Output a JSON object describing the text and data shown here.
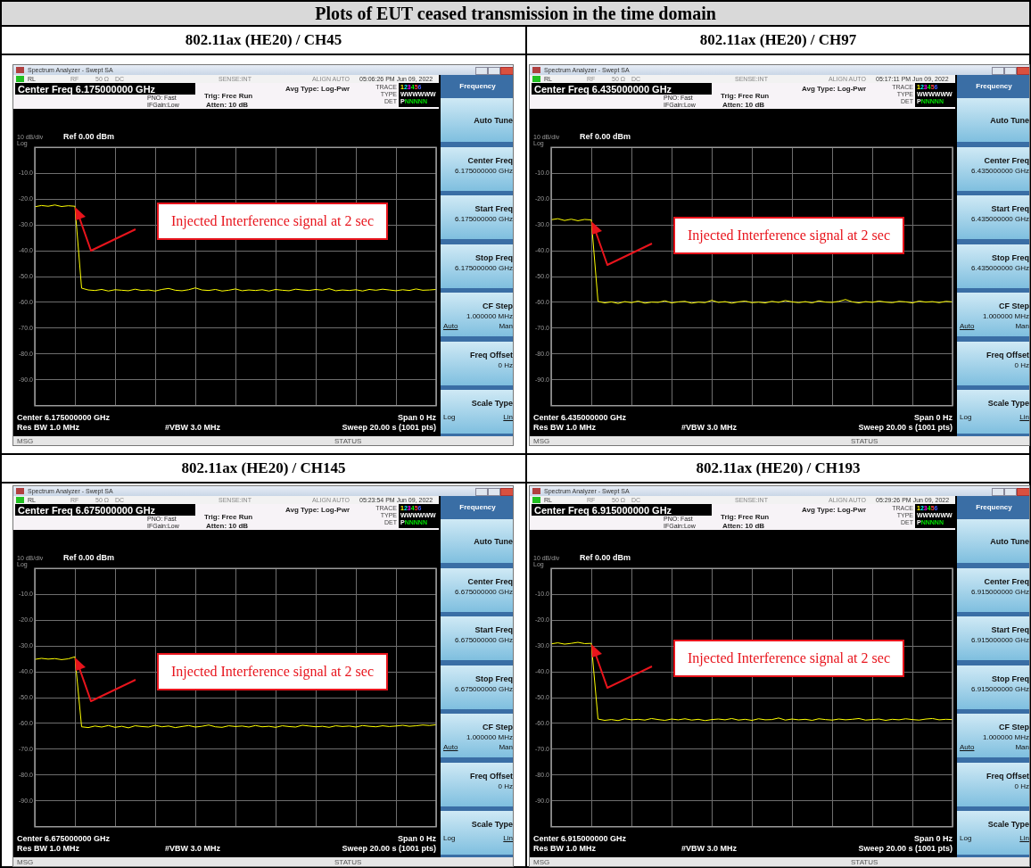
{
  "chart_data": [
    {
      "type": "other",
      "title": "Plots of EUT ceased transmission in the time domain"
    },
    {
      "type": "line",
      "title": "802.11ax (HE20) / CH45",
      "categories": [
        null,
        null,
        null,
        null,
        null,
        null,
        null,
        null,
        null,
        null,
        null,
        null,
        null,
        null,
        null,
        null,
        null,
        null,
        null,
        null,
        null,
        null,
        null,
        null,
        null,
        null,
        null,
        null,
        null,
        null,
        null,
        null,
        null,
        null,
        null,
        null,
        null,
        null,
        null,
        null,
        null,
        null,
        null,
        null,
        null,
        null,
        null,
        null,
        null,
        null,
        null,
        null,
        null,
        null,
        null,
        null,
        null,
        null,
        null,
        null,
        null
      ],
      "ylim": [
        -100,
        0
      ],
      "yticks": [
        {
          "value": -10,
          "label": "-10.0"
        },
        {
          "value": -20,
          "label": "-20.0"
        },
        {
          "value": -30,
          "label": "-30.0"
        },
        {
          "value": -40,
          "label": "-40.0"
        },
        {
          "value": -50,
          "label": "-50.0"
        },
        {
          "value": -60,
          "label": "-60.0"
        },
        {
          "value": -70,
          "label": "-70.0"
        },
        {
          "value": -80,
          "label": "-80.0"
        },
        {
          "value": -90,
          "label": "-90.0"
        }
      ],
      "grid": true,
      "tick_labels": "y",
      "marker": "none",
      "series": [
        {
          "color": "#ffff00",
          "values": [
            -23,
            -22.5,
            -22.8,
            -22.3,
            -22.9,
            -22.6,
            -22.8,
            -54.5,
            -55.2,
            -55.4,
            -55.0,
            -55.6,
            -55.1,
            -55.3,
            -55.5,
            -54.9,
            -55.4,
            -55.2,
            -55.6,
            -55.0,
            -54.6,
            -55.3,
            -55.5,
            -55.1,
            -54.4,
            -55.2,
            -55.4,
            -55.0,
            -55.6,
            -55.3,
            -54.8,
            -55.5,
            -55.2,
            -55.4,
            -55.1,
            -55.6,
            -55.0,
            -55.3,
            -55.5,
            -54.9,
            -55.2,
            -55.4,
            -55.0,
            -55.3,
            -54.7,
            -55.5,
            -55.2,
            -55.4,
            -55.1,
            -55.6,
            -55.0,
            -55.3,
            -54.9,
            -55.2,
            -55.5,
            -55.1,
            -55.4,
            -54.8,
            -55.3,
            -55.2,
            -55.0
          ]
        }
      ],
      "annotations": [
        "Spectrum Analyzer - Swept SA",
        "RL",
        "RF",
        "50 Ω",
        "DC",
        "SENSE:INT",
        "ALIGN AUTO",
        "05:06:26 PM Jun 09, 2022",
        "Center Freq 6.175000000 GHz",
        "PNO: Fast",
        "IFGain:Low",
        "Trig: Free Run",
        "Atten: 10 dB",
        "Avg Type: Log-Pwr",
        "TRACE",
        "TYPE",
        "DET",
        "123456",
        "WWWWWW",
        "PNNNNN",
        "10 dB/div",
        "Ref 0.00 dBm",
        "Log",
        "Center 6.175000000 GHz",
        "Res BW 1.0 MHz",
        "#VBW 3.0 MHz",
        "Span 0 Hz",
        "Sweep  20.00 s (1001 pts)",
        "MSG",
        "STATUS",
        "Frequency",
        "Auto Tune",
        "Center Freq",
        "6.175000000 GHz",
        "Start Freq",
        "6.175000000 GHz",
        "Stop Freq",
        "6.175000000 GHz",
        "CF Step",
        "1.000000 MHz",
        "Auto",
        "Man",
        "Freq Offset",
        "0 Hz",
        "Scale Type",
        "Log",
        "Lin",
        "Injected Interference signal at 2 sec"
      ]
    },
    {
      "type": "line",
      "title": "802.11ax (HE20) / CH97",
      "categories": [
        null,
        null,
        null,
        null,
        null,
        null,
        null,
        null,
        null,
        null,
        null,
        null,
        null,
        null,
        null,
        null,
        null,
        null,
        null,
        null,
        null,
        null,
        null,
        null,
        null,
        null,
        null,
        null,
        null,
        null,
        null,
        null,
        null,
        null,
        null,
        null,
        null,
        null,
        null,
        null,
        null,
        null,
        null,
        null,
        null,
        null,
        null,
        null,
        null,
        null,
        null,
        null,
        null,
        null,
        null,
        null,
        null,
        null,
        null,
        null,
        null
      ],
      "ylim": [
        -100,
        0
      ],
      "yticks": [
        {
          "value": -10,
          "label": "-10.0"
        },
        {
          "value": -20,
          "label": "-20.0"
        },
        {
          "value": -30,
          "label": "-30.0"
        },
        {
          "value": -40,
          "label": "-40.0"
        },
        {
          "value": -50,
          "label": "-50.0"
        },
        {
          "value": -60,
          "label": "-60.0"
        },
        {
          "value": -70,
          "label": "-70.0"
        },
        {
          "value": -80,
          "label": "-80.0"
        },
        {
          "value": -90,
          "label": "-90.0"
        }
      ],
      "grid": true,
      "tick_labels": "y",
      "marker": "none",
      "series": [
        {
          "color": "#ffff00",
          "values": [
            -28.0,
            -27.6,
            -28.3,
            -27.8,
            -28.4,
            -27.9,
            -28.1,
            -59.6,
            -60.2,
            -59.8,
            -60.4,
            -59.7,
            -60.1,
            -59.5,
            -60.3,
            -59.9,
            -60.0,
            -59.4,
            -60.2,
            -59.8,
            -59.6,
            -60.3,
            -59.9,
            -60.1,
            -59.2,
            -60.0,
            -59.7,
            -60.3,
            -59.8,
            -59.5,
            -60.1,
            -59.9,
            -60.2,
            -59.6,
            -60.0,
            -59.3,
            -59.8,
            -60.1,
            -59.7,
            -60.2,
            -59.4,
            -59.9,
            -60.0,
            -59.6,
            -58.9,
            -59.8,
            -60.2,
            -59.7,
            -60.0,
            -59.5,
            -59.9,
            -60.1,
            -59.6,
            -59.8,
            -60.2,
            -59.5,
            -59.9,
            -59.7,
            -60.1,
            -59.6,
            -59.8
          ]
        }
      ],
      "annotations": [
        "Spectrum Analyzer - Swept SA",
        "RL",
        "RF",
        "50 Ω",
        "DC",
        "SENSE:INT",
        "ALIGN AUTO",
        "05:17:11 PM Jun 09, 2022",
        "Center Freq 6.435000000 GHz",
        "PNO: Fast",
        "IFGain:Low",
        "Trig: Free Run",
        "Atten: 10 dB",
        "Avg Type: Log-Pwr",
        "TRACE",
        "TYPE",
        "DET",
        "123456",
        "WWWWWW",
        "PNNNNN",
        "10 dB/div",
        "Ref 0.00 dBm",
        "Log",
        "Center 6.435000000 GHz",
        "Res BW 1.0 MHz",
        "#VBW 3.0 MHz",
        "Span 0 Hz",
        "Sweep  20.00 s (1001 pts)",
        "MSG",
        "STATUS",
        "Frequency",
        "Auto Tune",
        "Center Freq",
        "6.435000000 GHz",
        "Start Freq",
        "6.435000000 GHz",
        "Stop Freq",
        "6.435000000 GHz",
        "CF Step",
        "1.000000 MHz",
        "Auto",
        "Man",
        "Freq Offset",
        "0 Hz",
        "Scale Type",
        "Log",
        "Lin",
        "Injected Interference signal at 2 sec"
      ]
    },
    {
      "type": "line",
      "title": "802.11ax (HE20) / CH145",
      "categories": [
        null,
        null,
        null,
        null,
        null,
        null,
        null,
        null,
        null,
        null,
        null,
        null,
        null,
        null,
        null,
        null,
        null,
        null,
        null,
        null,
        null,
        null,
        null,
        null,
        null,
        null,
        null,
        null,
        null,
        null,
        null,
        null,
        null,
        null,
        null,
        null,
        null,
        null,
        null,
        null,
        null,
        null,
        null,
        null,
        null,
        null,
        null,
        null,
        null,
        null,
        null,
        null,
        null,
        null,
        null,
        null,
        null,
        null,
        null,
        null,
        null
      ],
      "ylim": [
        -100,
        0
      ],
      "yticks": [
        {
          "value": -10,
          "label": "-10.0"
        },
        {
          "value": -20,
          "label": "-20.0"
        },
        {
          "value": -30,
          "label": "-30.0"
        },
        {
          "value": -40,
          "label": "-40.0"
        },
        {
          "value": -50,
          "label": "-50.0"
        },
        {
          "value": -60,
          "label": "-60.0"
        },
        {
          "value": -70,
          "label": "-70.0"
        },
        {
          "value": -80,
          "label": "-80.0"
        },
        {
          "value": -90,
          "label": "-90.0"
        }
      ],
      "grid": true,
      "tick_labels": "y",
      "marker": "none",
      "series": [
        {
          "color": "#ffff00",
          "values": [
            -35.2,
            -34.8,
            -35.1,
            -34.9,
            -35.3,
            -35.0,
            -34.2,
            -61.3,
            -61.6,
            -61.0,
            -61.4,
            -60.8,
            -61.5,
            -61.1,
            -61.7,
            -60.9,
            -61.2,
            -61.4,
            -60.7,
            -61.3,
            -61.0,
            -61.6,
            -61.2,
            -60.8,
            -61.4,
            -61.1,
            -60.6,
            -61.3,
            -61.5,
            -60.9,
            -61.2,
            -61.0,
            -61.4,
            -60.8,
            -61.3,
            -61.1,
            -61.5,
            -60.9,
            -61.2,
            -61.4,
            -60.7,
            -61.0,
            -61.3,
            -61.1,
            -61.5,
            -60.9,
            -61.2,
            -61.0,
            -61.4,
            -60.8,
            -61.1,
            -61.3,
            -60.9,
            -61.2,
            -61.0,
            -60.7,
            -61.1,
            -60.9,
            -60.6,
            -60.8,
            -60.5
          ]
        }
      ],
      "annotations": [
        "Spectrum Analyzer - Swept SA",
        "RL",
        "RF",
        "50 Ω",
        "DC",
        "SENSE:INT",
        "ALIGN AUTO",
        "05:23:54 PM Jun 09, 2022",
        "Center Freq 6.675000000 GHz",
        "PNO: Fast",
        "IFGain:Low",
        "Trig: Free Run",
        "Atten: 10 dB",
        "Avg Type: Log-Pwr",
        "TRACE",
        "TYPE",
        "DET",
        "123456",
        "WWWWWW",
        "PNNNNN",
        "10 dB/div",
        "Ref 0.00 dBm",
        "Log",
        "Center 6.675000000 GHz",
        "Res BW 1.0 MHz",
        "#VBW 3.0 MHz",
        "Span 0 Hz",
        "Sweep  20.00 s (1001 pts)",
        "MSG",
        "STATUS",
        "Frequency",
        "Auto Tune",
        "Center Freq",
        "6.675000000 GHz",
        "Start Freq",
        "6.675000000 GHz",
        "Stop Freq",
        "6.675000000 GHz",
        "CF Step",
        "1.000000 MHz",
        "Auto",
        "Man",
        "Freq Offset",
        "0 Hz",
        "Scale Type",
        "Log",
        "Lin",
        "Injected Interference signal at 2 sec"
      ]
    },
    {
      "type": "line",
      "title": "802.11ax (HE20) / CH193",
      "categories": [
        null,
        null,
        null,
        null,
        null,
        null,
        null,
        null,
        null,
        null,
        null,
        null,
        null,
        null,
        null,
        null,
        null,
        null,
        null,
        null,
        null,
        null,
        null,
        null,
        null,
        null,
        null,
        null,
        null,
        null,
        null,
        null,
        null,
        null,
        null,
        null,
        null,
        null,
        null,
        null,
        null,
        null,
        null,
        null,
        null,
        null,
        null,
        null,
        null,
        null,
        null,
        null,
        null,
        null,
        null,
        null,
        null,
        null,
        null,
        null,
        null
      ],
      "ylim": [
        -100,
        0
      ],
      "yticks": [
        {
          "value": -10,
          "label": "-10.0"
        },
        {
          "value": -20,
          "label": "-20.0"
        },
        {
          "value": -30,
          "label": "-30.0"
        },
        {
          "value": -40,
          "label": "-40.0"
        },
        {
          "value": -50,
          "label": "-50.0"
        },
        {
          "value": -60,
          "label": "-60.0"
        },
        {
          "value": -70,
          "label": "-70.0"
        },
        {
          "value": -80,
          "label": "-80.0"
        },
        {
          "value": -90,
          "label": "-90.0"
        }
      ],
      "grid": true,
      "tick_labels": "y",
      "marker": "none",
      "series": [
        {
          "color": "#ffff00",
          "values": [
            -29.2,
            -28.8,
            -29.3,
            -29.0,
            -28.6,
            -29.1,
            -29.0,
            -58.3,
            -58.8,
            -58.5,
            -58.9,
            -58.2,
            -58.6,
            -58.4,
            -58.7,
            -58.1,
            -58.5,
            -58.8,
            -58.3,
            -58.6,
            -58.2,
            -58.7,
            -58.4,
            -58.9,
            -58.5,
            -58.3,
            -58.6,
            -58.1,
            -58.7,
            -58.4,
            -58.8,
            -58.2,
            -58.6,
            -58.5,
            -57.9,
            -58.7,
            -58.3,
            -58.6,
            -58.4,
            -58.8,
            -58.2,
            -58.5,
            -58.7,
            -58.3,
            -58.6,
            -58.4,
            -58.1,
            -58.7,
            -58.5,
            -58.3,
            -58.8,
            -58.4,
            -58.6,
            -58.2,
            -58.5,
            -58.7,
            -58.3,
            -58.1,
            -58.6,
            -58.4,
            -58.5
          ]
        }
      ],
      "annotations": [
        "Spectrum Analyzer - Swept SA",
        "RL",
        "RF",
        "50 Ω",
        "DC",
        "SENSE:INT",
        "ALIGN AUTO",
        "05:29:26 PM Jun 09, 2022",
        "Center Freq 6.915000000 GHz",
        "PNO: Fast",
        "IFGain:Low",
        "Trig: Free Run",
        "Atten: 10 dB",
        "Avg Type: Log-Pwr",
        "TRACE",
        "TYPE",
        "DET",
        "123456",
        "WWWWWW",
        "PNNNNN",
        "10 dB/div",
        "Ref 0.00 dBm",
        "Log",
        "Center 6.915000000 GHz",
        "Res BW 1.0 MHz",
        "#VBW 3.0 MHz",
        "Span 0 Hz",
        "Sweep  20.00 s (1001 pts)",
        "MSG",
        "STATUS",
        "Frequency",
        "Auto Tune",
        "Center Freq",
        "6.915000000 GHz",
        "Start Freq",
        "6.915000000 GHz",
        "Stop Freq",
        "6.915000000 GHz",
        "CF Step",
        "1.000000 MHz",
        "Auto",
        "Man",
        "Freq Offset",
        "0 Hz",
        "Scale Type",
        "Log",
        "Lin",
        "Injected Interference signal at 2 sec"
      ]
    }
  ]
}
